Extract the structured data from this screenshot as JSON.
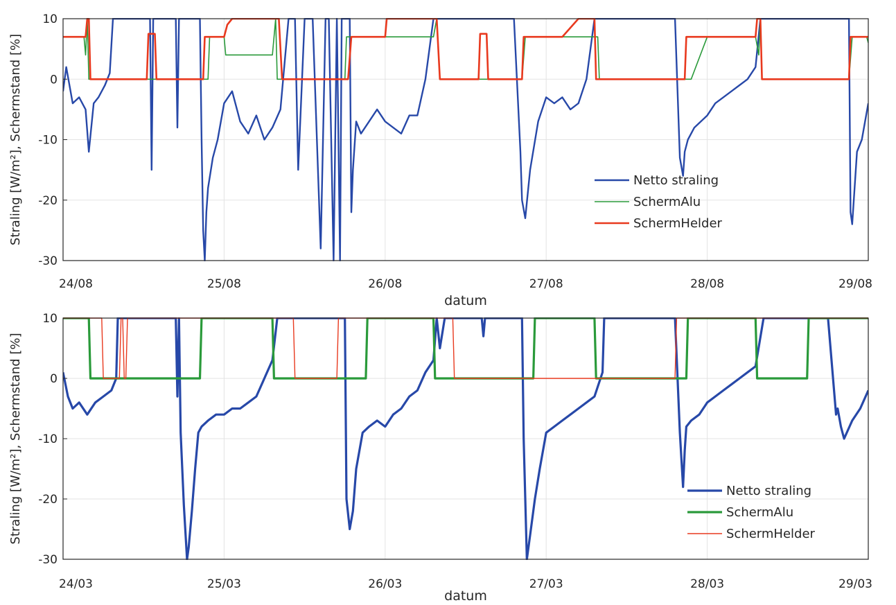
{
  "chart_data": [
    {
      "type": "line",
      "xlabel": "datum",
      "ylabel": "Straling [W/m²], Schermstand [%]",
      "xlim": [
        0,
        5
      ],
      "ylim": [
        -30,
        10
      ],
      "x_ticks": [
        {
          "value": 0,
          "label": "24/08"
        },
        {
          "value": 1,
          "label": "25/08"
        },
        {
          "value": 2,
          "label": "26/08"
        },
        {
          "value": 3,
          "label": "27/08"
        },
        {
          "value": 4,
          "label": "28/08"
        },
        {
          "value": 5,
          "label": "29/08"
        }
      ],
      "y_ticks": [
        -30,
        -20,
        -10,
        0,
        10
      ],
      "grid": true,
      "legend_position": "bottom-right",
      "series": [
        {
          "name": "Netto straling",
          "color": "#2748a8",
          "x": [
            0,
            0.02,
            0.06,
            0.1,
            0.14,
            0.16,
            0.19,
            0.22,
            0.26,
            0.29,
            0.31,
            0.33,
            0.36,
            0.42,
            0.5,
            0.54,
            0.55,
            0.56,
            0.58,
            0.7,
            0.71,
            0.72,
            0.74,
            0.85,
            0.86,
            0.87,
            0.88,
            0.89,
            0.9,
            0.93,
            0.96,
            1,
            1.05,
            1.1,
            1.15,
            1.2,
            1.25,
            1.3,
            1.35,
            1.4,
            1.42,
            1.44,
            1.46,
            1.5,
            1.52,
            1.53,
            1.55,
            1.6,
            1.63,
            1.64,
            1.65,
            1.68,
            1.7,
            1.72,
            1.73,
            1.78,
            1.79,
            1.8,
            1.82,
            1.85,
            1.9,
            1.95,
            2,
            2.05,
            2.1,
            2.15,
            2.2,
            2.25,
            2.3,
            2.33,
            2.36,
            2.5,
            2.7,
            2.8,
            2.84,
            2.85,
            2.87,
            2.9,
            2.95,
            3,
            3.05,
            3.1,
            3.15,
            3.2,
            3.25,
            3.3,
            3.35,
            3.5,
            3.7,
            3.8,
            3.83,
            3.85,
            3.86,
            3.88,
            3.92,
            4,
            4.05,
            4.1,
            4.15,
            4.2,
            4.25,
            4.3,
            4.33,
            4.35,
            4.5,
            4.7,
            4.85,
            4.88,
            4.89,
            4.9,
            4.93,
            4.96,
            5
          ],
          "y": [
            -2,
            2,
            -4,
            -3,
            -5,
            -12,
            -4,
            -3,
            -1,
            1,
            10,
            10,
            10,
            10,
            10,
            10,
            -15,
            10,
            10,
            10,
            -8,
            10,
            10,
            10,
            -10,
            -25,
            -30,
            -22,
            -18,
            -13,
            -10,
            -4,
            -2,
            -7,
            -9,
            -6,
            -10,
            -8,
            -5,
            10,
            10,
            10,
            -15,
            10,
            10,
            10,
            10,
            -28,
            10,
            10,
            10,
            -30,
            10,
            -30,
            10,
            10,
            -22,
            -15,
            -7,
            -9,
            -7,
            -5,
            -7,
            -8,
            -9,
            -6,
            -6,
            0,
            10,
            10,
            10,
            10,
            10,
            10,
            -12,
            -20,
            -23,
            -15,
            -7,
            -3,
            -4,
            -3,
            -5,
            -4,
            0,
            10,
            10,
            10,
            10,
            10,
            -13,
            -16,
            -12,
            -10,
            -8,
            -6,
            -4,
            -3,
            -2,
            -1,
            0,
            2,
            10,
            10,
            10,
            10,
            10,
            10,
            -22,
            -24,
            -12,
            -10,
            -4
          ]
        },
        {
          "name": "SchermAlu",
          "color": "#2a9a3a",
          "x": [
            0,
            0.13,
            0.14,
            0.15,
            0.16,
            0.45,
            0.47,
            0.48,
            0.49,
            0.5,
            0.8,
            0.9,
            0.91,
            1,
            1.01,
            1.1,
            1.3,
            1.32,
            1.33,
            1.35,
            1.36,
            1.7,
            1.75,
            1.76,
            2,
            2.1,
            2.2,
            2.3,
            2.32,
            2.34,
            2.5,
            2.8,
            2.85,
            2.87,
            3,
            3.05,
            3.1,
            3.3,
            3.32,
            3.33,
            3.9,
            4,
            4.1,
            4.2,
            4.3,
            4.32,
            4.33,
            4.34,
            4.8,
            4.88,
            4.9,
            4.99,
            5
          ],
          "y": [
            7,
            7,
            4,
            10,
            0,
            0,
            0,
            0,
            0,
            0,
            0,
            0,
            7,
            7,
            4,
            4,
            4,
            10,
            0,
            0,
            0,
            0,
            0,
            7,
            7,
            7,
            7,
            7,
            10,
            0,
            0,
            0,
            0,
            7,
            7,
            7,
            7,
            7,
            7,
            0,
            0,
            7,
            7,
            7,
            7,
            4,
            10,
            0,
            0,
            0,
            7,
            7,
            6
          ]
        },
        {
          "name": "SchermHelder",
          "color": "#e8391e",
          "x": [
            0,
            0.14,
            0.15,
            0.16,
            0.17,
            0.52,
            0.53,
            0.57,
            0.58,
            0.87,
            0.88,
            1,
            1.02,
            1.05,
            1.15,
            1.3,
            1.33,
            1.34,
            1.36,
            1.77,
            1.79,
            2,
            2.01,
            2.2,
            2.3,
            2.32,
            2.34,
            2.58,
            2.59,
            2.63,
            2.64,
            2.85,
            2.86,
            3,
            3.1,
            3.2,
            3.3,
            3.31,
            3.86,
            3.87,
            4,
            4.2,
            4.3,
            4.31,
            4.33,
            4.34,
            4.88,
            4.89,
            5
          ],
          "y": [
            7,
            7,
            10,
            10,
            0,
            0,
            7.5,
            7.5,
            0,
            0,
            7,
            7,
            9,
            10,
            10,
            10,
            10,
            10,
            0,
            0,
            7,
            7,
            10,
            10,
            10,
            10,
            0,
            0,
            7.5,
            7.5,
            0,
            0,
            7,
            7,
            7,
            10,
            10,
            0,
            0,
            7,
            7,
            7,
            7,
            10,
            10,
            0,
            0,
            7,
            7
          ]
        }
      ]
    },
    {
      "type": "line",
      "xlabel": "datum",
      "ylabel": "Straling [W/m²], Schermstand [%]",
      "xlim": [
        0,
        5
      ],
      "ylim": [
        -30,
        10
      ],
      "x_ticks": [
        {
          "value": 0,
          "label": "24/03"
        },
        {
          "value": 1,
          "label": "25/03"
        },
        {
          "value": 2,
          "label": "26/03"
        },
        {
          "value": 3,
          "label": "27/03"
        },
        {
          "value": 4,
          "label": "28/03"
        },
        {
          "value": 5,
          "label": "29/03"
        }
      ],
      "y_ticks": [
        -30,
        -20,
        -10,
        0,
        10
      ],
      "grid": true,
      "legend_position": "bottom-right",
      "series": [
        {
          "name": "Netto straling",
          "color": "#2748a8",
          "x": [
            0,
            0.03,
            0.06,
            0.1,
            0.15,
            0.2,
            0.25,
            0.3,
            0.33,
            0.34,
            0.5,
            0.7,
            0.71,
            0.72,
            0.73,
            0.75,
            0.77,
            0.78,
            0.8,
            0.82,
            0.84,
            0.86,
            0.9,
            0.95,
            1,
            1.05,
            1.1,
            1.15,
            1.2,
            1.25,
            1.3,
            1.33,
            1.34,
            1.5,
            1.75,
            1.76,
            1.78,
            1.8,
            1.82,
            1.86,
            1.9,
            1.95,
            2,
            2.05,
            2.1,
            2.15,
            2.2,
            2.25,
            2.3,
            2.32,
            2.34,
            2.37,
            2.38,
            2.5,
            2.6,
            2.61,
            2.62,
            2.8,
            2.85,
            2.86,
            2.88,
            2.9,
            2.93,
            2.96,
            3,
            3.05,
            3.1,
            3.15,
            3.2,
            3.25,
            3.3,
            3.35,
            3.36,
            3.5,
            3.75,
            3.8,
            3.83,
            3.85,
            3.86,
            3.87,
            3.9,
            3.95,
            4,
            4.05,
            4.1,
            4.15,
            4.2,
            4.25,
            4.3,
            4.35,
            4.5,
            4.75,
            4.8,
            4.81,
            4.83,
            4.85,
            4.9,
            4.95,
            5
          ],
          "y": [
            1,
            -3,
            -5,
            -4,
            -6,
            -4,
            -3,
            -2,
            0,
            10,
            10,
            10,
            -3,
            10,
            -9,
            -21,
            -30,
            -28,
            -22,
            -15,
            -9,
            -8,
            -7,
            -6,
            -6,
            -5,
            -5,
            -4,
            -3,
            0,
            3,
            10,
            10,
            10,
            10,
            -20,
            -25,
            -22,
            -15,
            -9,
            -8,
            -7,
            -8,
            -6,
            -5,
            -3,
            -2,
            1,
            3,
            10,
            5,
            10,
            10,
            10,
            10,
            7,
            10,
            10,
            10,
            -10,
            -30,
            -26,
            -20,
            -15,
            -9,
            -8,
            -7,
            -6,
            -5,
            -4,
            -3,
            1,
            10,
            10,
            10,
            10,
            -9,
            -18,
            -12,
            -8,
            -7,
            -6,
            -4,
            -3,
            -2,
            -1,
            0,
            1,
            2,
            10,
            10,
            10,
            -6,
            -5,
            -8,
            -10,
            -7,
            -5,
            -2
          ]
        },
        {
          "name": "SchermAlu",
          "color": "#2a9a3a",
          "x": [
            0,
            0.16,
            0.17,
            0.43,
            0.44,
            0.85,
            0.86,
            1.3,
            1.31,
            1.5,
            1.51,
            1.88,
            1.89,
            2,
            2.3,
            2.31,
            2.5,
            2.92,
            2.93,
            3.3,
            3.31,
            3.5,
            3.52,
            3.87,
            3.88,
            3.9,
            3.91,
            4.3,
            4.31,
            4.5,
            4.62,
            4.63,
            5
          ],
          "y": [
            10,
            10,
            0,
            0,
            0,
            0,
            10,
            10,
            0,
            0,
            0,
            0,
            10,
            10,
            10,
            0,
            0,
            0,
            10,
            10,
            0,
            0,
            0,
            0,
            10,
            10,
            10,
            10,
            0,
            0,
            0,
            10,
            10
          ]
        },
        {
          "name": "SchermHelder",
          "color": "#e8391e",
          "x": [
            0,
            0.24,
            0.25,
            0.35,
            0.36,
            0.37,
            0.38,
            0.39,
            0.4,
            0.42,
            1.43,
            1.44,
            1.7,
            1.71,
            2.1,
            2.11,
            2.42,
            2.43,
            2.5,
            3.75,
            3.76,
            3.8,
            3.81,
            5
          ],
          "y": [
            10,
            10,
            0,
            0,
            10,
            10,
            0,
            0,
            10,
            10,
            10,
            0,
            0,
            10,
            10,
            10,
            10,
            0,
            0,
            0,
            0,
            0,
            10,
            10
          ]
        }
      ]
    }
  ]
}
